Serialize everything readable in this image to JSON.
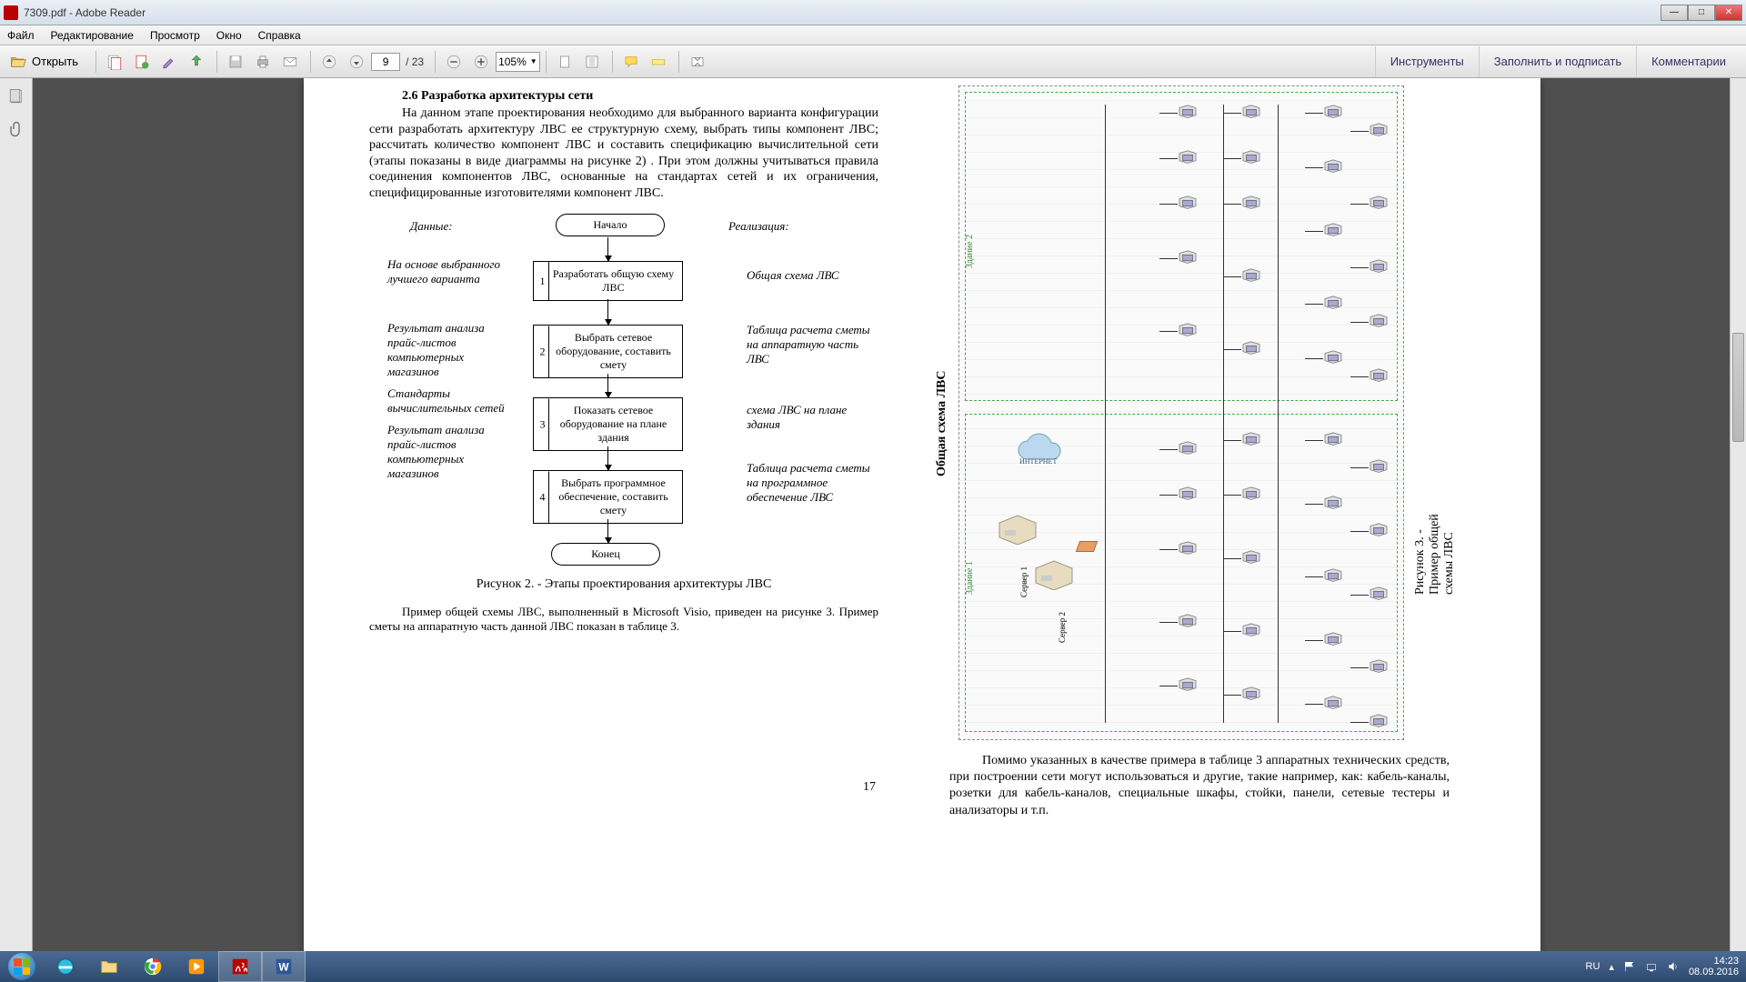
{
  "titlebar": {
    "title": "7309.pdf - Adobe Reader"
  },
  "menubar": {
    "items": [
      "Файл",
      "Редактирование",
      "Просмотр",
      "Окно",
      "Справка"
    ]
  },
  "toolbar": {
    "open_label": "Открыть",
    "page_current": "9",
    "page_total": "/ 23",
    "zoom": "105%",
    "right_panels": [
      "Инструменты",
      "Заполнить и подписать",
      "Комментарии"
    ]
  },
  "document": {
    "left_column": {
      "section_title": "2.6 Разработка архитектуры сети",
      "paragraph": "На данном этапе проектирования необходимо для выбранного варианта конфигурации сети разработать архитектуру ЛВС ее структурную схему, выбрать типы компонент ЛВС; рассчитать количество компонент ЛВС и составить спецификацию вычислительной сети (этапы показаны в виде диаграммы на рисунке 2) . При этом должны учитываться правила соединения компонентов ЛВС, основанные на стандартах сетей и их ограничения, специфицированные изготовителями компонент ЛВС.",
      "flowchart": {
        "header_left": "Данные:",
        "header_right": "Реализация:",
        "start": "Начало",
        "end": "Конец",
        "steps": [
          {
            "num": "1",
            "text": "Разработать общую схему ЛВС",
            "left": "На основе выбранного лучшего варианта",
            "right": "Общая схема ЛВС"
          },
          {
            "num": "2",
            "text": "Выбрать сетевое оборудование, составить смету",
            "left": "Результат анализа прайс-листов компьютерных магазинов",
            "right": "Таблица расчета сметы на аппаратную часть ЛВС"
          },
          {
            "num": "3",
            "text": "Показать сетевое оборудование на плане здания",
            "left": "Стандарты вычислительных сетей",
            "right": "схема ЛВС на плане здания"
          },
          {
            "num": "4",
            "text": "Выбрать программное обеспечение, составить смету",
            "left": "Результат анализа прайс-листов компьютерных магазинов",
            "right": "Таблица расчета сметы на программное обеспечение ЛВС"
          }
        ]
      },
      "fig2_caption": "Рисунок 2. - Этапы проектирования архитектуры ЛВС",
      "paragraph2": "Пример общей схемы ЛВС, выполненный в Microsoft Visio, приведен на рисунке 3. Пример сметы на аппаратную часть данной ЛВС показан в таблице 3.",
      "page_num": "17"
    },
    "right_column": {
      "net_title_left": "Общая схема ЛВС",
      "net_title_right": "Рисунок 3. - Пример общей схемы ЛВС",
      "building1": "Здание 1",
      "building2": "Здание 2",
      "cloud_label": "ИНТЕРНЕТ",
      "server1": "Сервер 1",
      "server2": "Сервер 2",
      "paragraph": "Помимо указанных в качестве примера в таблице 3 аппаратных технических средств, при построении сети могут использоваться и другие, такие например, как: кабель-каналы, розетки для кабель-каналов, специальные шкафы, стойки, панели, сетевые тестеры и анализаторы и т.п."
    }
  },
  "taskbar": {
    "lang": "RU",
    "time": "14:23",
    "date": "08.09.2016"
  },
  "colors": {
    "accent": "#336699",
    "page_bg": "#ffffff",
    "desk_bg": "#4f4f4f"
  }
}
